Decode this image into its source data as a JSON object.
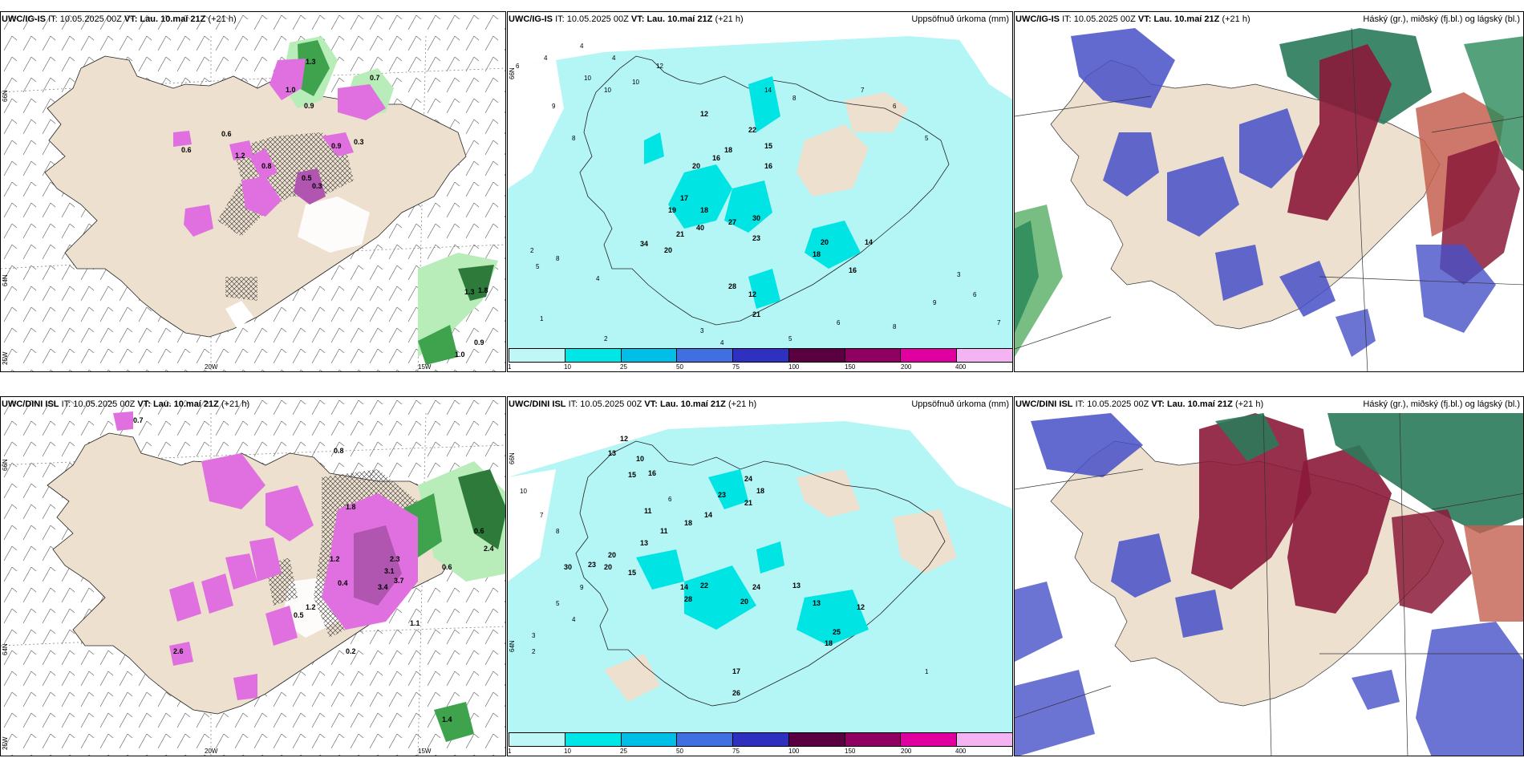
{
  "panels": {
    "top": {
      "model": "UWC/IG-IS",
      "init_label": "IT:",
      "init_value": "10.05.2025 00Z",
      "valid_label": "VT:",
      "valid_value": "Lau. 10.maí 21Z",
      "lead": "(+21 h)"
    },
    "bottom": {
      "model": "UWC/DINI ISL",
      "init_label": "IT:",
      "init_value": "10.05.2025 00Z",
      "valid_label": "VT:",
      "valid_value": "Lau. 10.maí 21Z",
      "lead": "(+21 h)"
    }
  },
  "titles": {
    "precip": "Uppsöfnuð úrkoma (mm)",
    "cloud": "Háský (gr.), miðský (fj.bl.) og lágský (bl.)"
  },
  "axis": {
    "lat_66": "66N",
    "lat_64": "64N",
    "lon_25": "25W",
    "lon_20": "20W",
    "lon_15": "15W"
  },
  "colorbar": {
    "colors": [
      "#bff6f6",
      "#00e6e6",
      "#00bfe6",
      "#3f6fe0",
      "#3030c0",
      "#5a0040",
      "#900060",
      "#e000a0",
      "#f4b4f4"
    ],
    "labels": [
      "1",
      "10",
      "25",
      "50",
      "75",
      "100",
      "150",
      "200",
      "400"
    ]
  },
  "colors": {
    "land": "#ede0cf",
    "cyan_light": "#b4f5f5",
    "cyan": "#00e4e4",
    "magenta": "#e070e0",
    "magenta_dark": "#7a2a7a",
    "green": "#3fa34d",
    "green_light": "#b8ecb8",
    "blue": "#4650c8",
    "red": "#8b1a3a",
    "teal": "#2a7a5a"
  },
  "precip_top_values": [
    "6",
    "4",
    "4",
    "4",
    "12",
    "14",
    "8",
    "10",
    "10",
    "10",
    "9",
    "8",
    "7",
    "6",
    "5",
    "12",
    "22",
    "15",
    "16",
    "20",
    "16",
    "18",
    "18",
    "17",
    "19",
    "40",
    "21",
    "34",
    "20",
    "23",
    "30",
    "27",
    "28",
    "12",
    "21",
    "20",
    "18",
    "14",
    "16",
    "8",
    "5",
    "4",
    "3",
    "6",
    "9",
    "8",
    "7",
    "6",
    "5",
    "4",
    "3",
    "2",
    "1",
    "2",
    "3",
    "4",
    "5",
    "6"
  ],
  "precip_bottom_values": [
    "12",
    "13",
    "10",
    "16",
    "15",
    "11",
    "23",
    "24",
    "18",
    "21",
    "18",
    "14",
    "13",
    "11",
    "20",
    "30",
    "23",
    "15",
    "20",
    "14",
    "22",
    "13",
    "28",
    "24",
    "20",
    "25",
    "18",
    "17",
    "26",
    "13",
    "12",
    "10",
    "7",
    "8",
    "9",
    "6",
    "5",
    "4",
    "3",
    "2",
    "1"
  ],
  "snow_top_values": [
    "1.3",
    "1.0",
    "0.9",
    "0.7",
    "0.6",
    "1.2",
    "0.8",
    "0.5",
    "0.3",
    "0.6",
    "0.9",
    "0.3",
    "1.3",
    "1.8",
    "1.0",
    "0.9",
    "0.6",
    "0.5",
    "0.4"
  ],
  "snow_bottom_values": [
    "0.7",
    "0.8",
    "1.8",
    "1.2",
    "0.6",
    "2.4",
    "0.4",
    "3.1",
    "2.3",
    "3.4",
    "3.7",
    "0.6",
    "1.1",
    "0.2",
    "2.6",
    "1.2",
    "0.5",
    "1.4",
    "0.9",
    "0.3"
  ]
}
